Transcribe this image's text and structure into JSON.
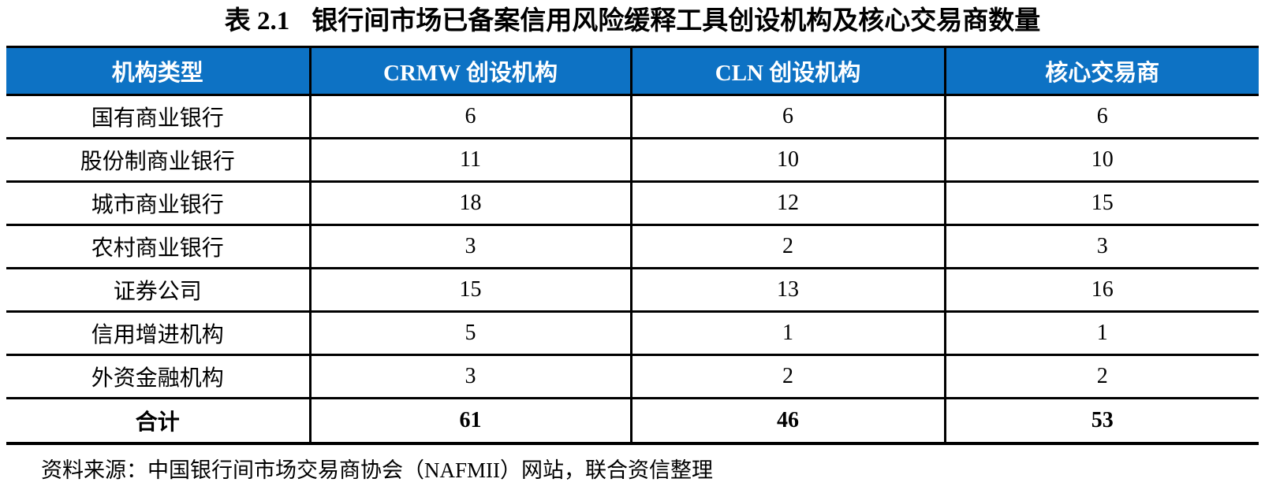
{
  "title": {
    "number": "表 2.1",
    "text": "银行间市场已备案信用风险缓释工具创设机构及核心交易商数量"
  },
  "table": {
    "columns": [
      "机构类型",
      "CRMW 创设机构",
      "CLN 创设机构",
      "核心交易商"
    ],
    "rows": [
      [
        "国有商业银行",
        "6",
        "6",
        "6"
      ],
      [
        "股份制商业银行",
        "11",
        "10",
        "10"
      ],
      [
        "城市商业银行",
        "18",
        "12",
        "15"
      ],
      [
        "农村商业银行",
        "3",
        "2",
        "3"
      ],
      [
        "证券公司",
        "15",
        "13",
        "16"
      ],
      [
        "信用增进机构",
        "5",
        "1",
        "1"
      ],
      [
        "外资金融机构",
        "3",
        "2",
        "2"
      ]
    ],
    "total": [
      "合计",
      "61",
      "46",
      "53"
    ]
  },
  "source": "资料来源：中国银行间市场交易商协会（NAFMII）网站，联合资信整理",
  "colors": {
    "header_bg": "#0d72c4",
    "header_text": "#ffffff",
    "border": "#000000",
    "body_text": "#000000"
  }
}
